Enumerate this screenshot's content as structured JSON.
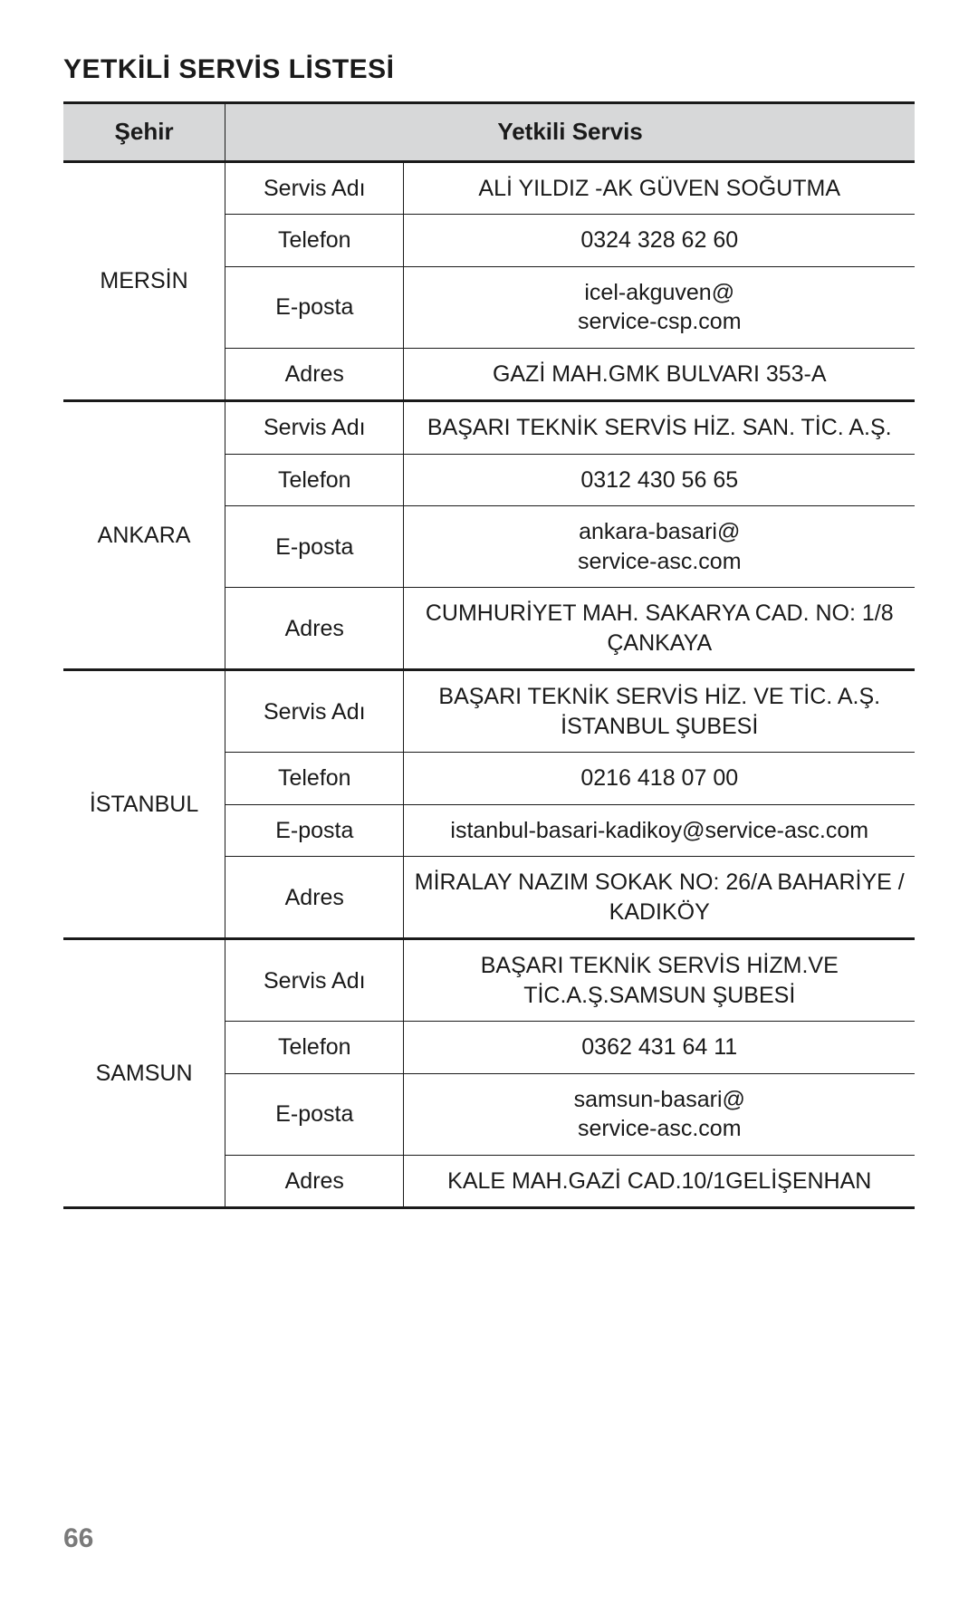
{
  "title": "YETKİLİ SERVİS LİSTESİ",
  "page_number": "66",
  "table": {
    "header": {
      "city": "Şehir",
      "service": "Yetkili Servis"
    },
    "field_labels": {
      "name": "Servis Adı",
      "phone": "Telefon",
      "email": "E-posta",
      "address": "Adres"
    },
    "colors": {
      "header_bg": "#d7d8d9",
      "border": "#1a1a1a",
      "text": "#1a1a1a",
      "page_number": "#7a7a7a",
      "background": "#ffffff"
    },
    "column_widths_pct": [
      19,
      21,
      60
    ],
    "font_sizes_pt": {
      "title": 22,
      "header": 19,
      "cell": 18,
      "page_number": 22
    },
    "rows": [
      {
        "city": "MERSİN",
        "name": "ALİ YILDIZ -AK GÜVEN SOĞUTMA",
        "phone": "0324 328 62 60",
        "email": "icel-akguven@\nservice-csp.com",
        "address": "GAZİ MAH.GMK BULVARI 353-A"
      },
      {
        "city": "ANKARA",
        "name": "BAŞARI TEKNİK SERVİS HİZ. SAN. TİC. A.Ş.",
        "phone": "0312 430 56 65",
        "email": "ankara-basari@\nservice-asc.com",
        "address": "CUMHURİYET MAH. SAKARYA CAD. NO: 1/8 ÇANKAYA"
      },
      {
        "city": "İSTANBUL",
        "name": "BAŞARI TEKNİK SERVİS HİZ. VE TİC. A.Ş. İSTANBUL ŞUBESİ",
        "phone": "0216 418 07 00",
        "email": "istanbul-basari-kadikoy@service-asc.com",
        "address": "MİRALAY NAZIM SOKAK NO: 26/A BAHARİYE / KADIKÖY"
      },
      {
        "city": "SAMSUN",
        "name": "BAŞARI TEKNİK SERVİS HİZM.VE TİC.A.Ş.SAMSUN ŞUBESİ",
        "phone": "0362 431 64 11",
        "email": "samsun-basari@\nservice-asc.com",
        "address": "KALE MAH.GAZİ CAD.10/1GELİŞENHAN"
      }
    ]
  }
}
